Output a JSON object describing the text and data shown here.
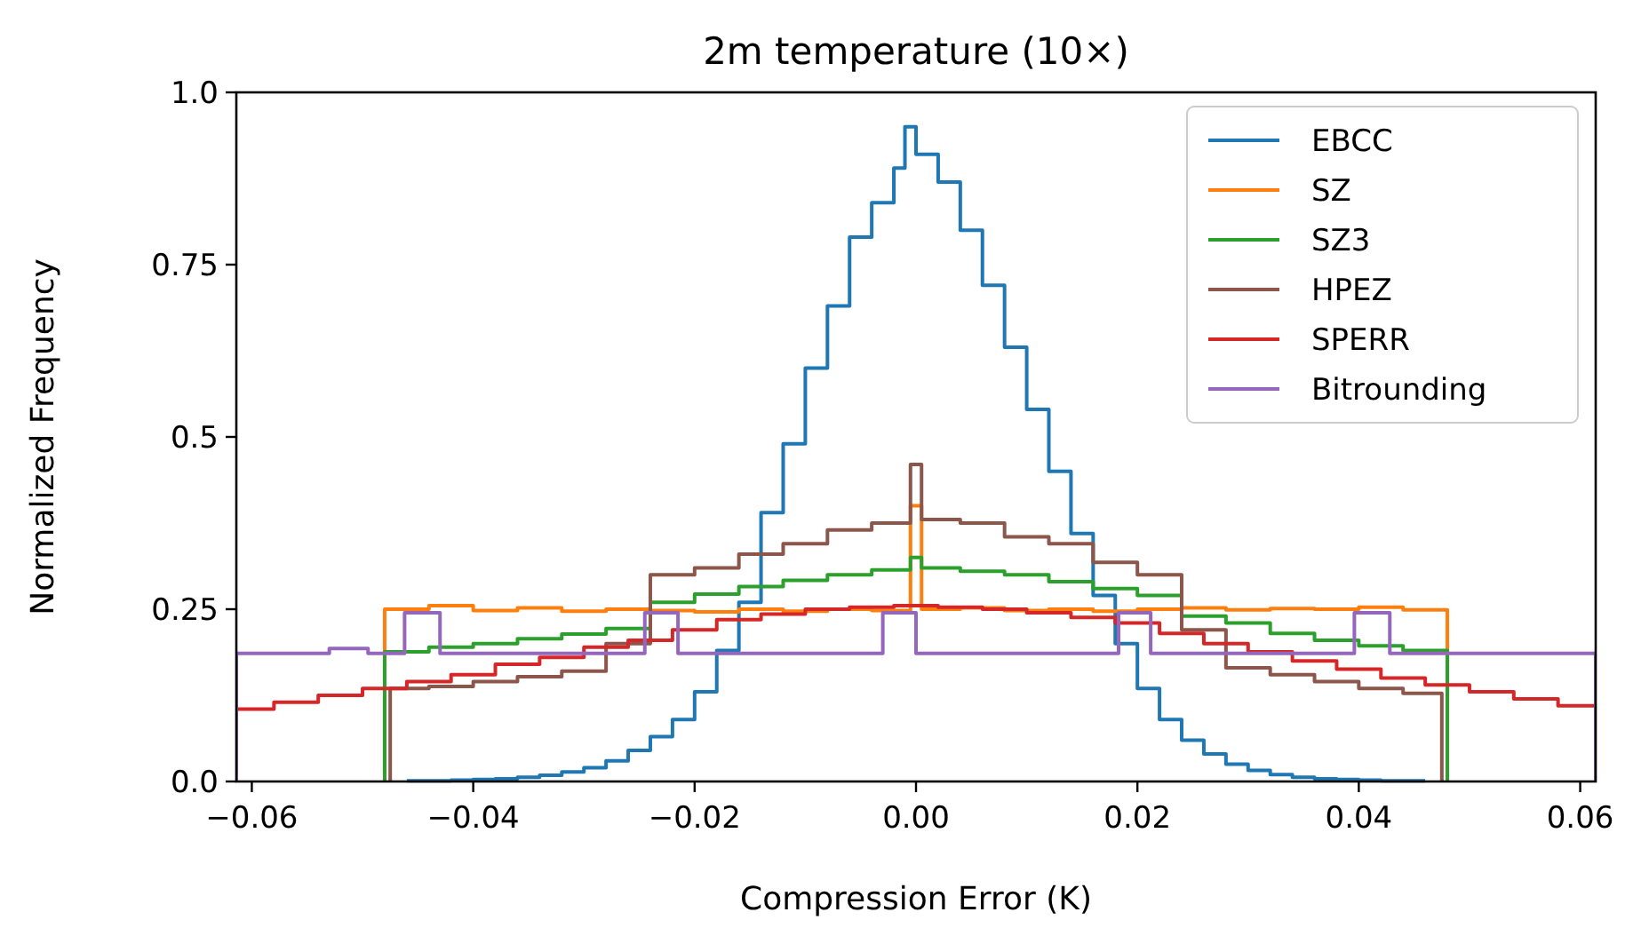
{
  "chart_data": {
    "type": "step",
    "title": "2m temperature (10×)",
    "xlabel": "Compression Error (K)",
    "ylabel": "Normalized Frequency",
    "xlim": [
      -0.0614,
      0.0614
    ],
    "ylim": [
      0,
      1
    ],
    "xticks": [
      {
        "value": -0.06,
        "label": "−0.06"
      },
      {
        "value": -0.04,
        "label": "−0.04"
      },
      {
        "value": -0.02,
        "label": "−0.02"
      },
      {
        "value": 0,
        "label": "0.00"
      },
      {
        "value": 0.02,
        "label": "0.02"
      },
      {
        "value": 0.04,
        "label": "0.04"
      },
      {
        "value": 0.06,
        "label": "0.06"
      }
    ],
    "yticks": [
      {
        "value": 0,
        "label": "0.0"
      },
      0.25,
      0.5,
      0.75,
      {
        "value": 1,
        "label": "1.0"
      }
    ],
    "legend": "top right",
    "grid": false,
    "series": [
      {
        "name": "EBCC",
        "color": "#1f77b4",
        "x": [
          -0.046,
          -0.044,
          -0.042,
          -0.04,
          -0.038,
          -0.036,
          -0.034,
          -0.032,
          -0.03,
          -0.028,
          -0.026,
          -0.024,
          -0.022,
          -0.02,
          -0.018,
          -0.016,
          -0.014,
          -0.012,
          -0.01,
          -0.008,
          -0.006,
          -0.004,
          -0.002,
          -0.001,
          0,
          0.002,
          0.004,
          0.006,
          0.008,
          0.01,
          0.012,
          0.014,
          0.016,
          0.018,
          0.02,
          0.022,
          0.024,
          0.026,
          0.028,
          0.03,
          0.032,
          0.034,
          0.036,
          0.038,
          0.04,
          0.042,
          0.044,
          0.046
        ],
        "values": [
          0.001,
          0.001,
          0.002,
          0.003,
          0.004,
          0.006,
          0.009,
          0.014,
          0.02,
          0.03,
          0.045,
          0.065,
          0.09,
          0.13,
          0.19,
          0.26,
          0.39,
          0.49,
          0.6,
          0.69,
          0.79,
          0.84,
          0.89,
          0.95,
          0.91,
          0.87,
          0.8,
          0.72,
          0.63,
          0.54,
          0.45,
          0.36,
          0.27,
          0.2,
          0.135,
          0.09,
          0.06,
          0.04,
          0.025,
          0.016,
          0.01,
          0.006,
          0.004,
          0.003,
          0.002,
          0.001,
          0.001,
          0.001
        ]
      },
      {
        "name": "SZ",
        "color": "#ff7f0e",
        "x": [
          -0.048,
          -0.048,
          -0.044,
          -0.04,
          -0.036,
          -0.032,
          -0.028,
          -0.024,
          -0.02,
          -0.016,
          -0.012,
          -0.008,
          -0.004,
          -0.0005,
          0.0005,
          0.004,
          0.008,
          0.012,
          0.016,
          0.02,
          0.024,
          0.028,
          0.032,
          0.036,
          0.04,
          0.044,
          0.048
        ],
        "values": [
          0,
          0.25,
          0.255,
          0.248,
          0.252,
          0.247,
          0.25,
          0.248,
          0.246,
          0.25,
          0.247,
          0.25,
          0.248,
          0.4,
          0.25,
          0.252,
          0.248,
          0.25,
          0.247,
          0.25,
          0.252,
          0.249,
          0.251,
          0.25,
          0.253,
          0.249,
          0
        ]
      },
      {
        "name": "SZ3",
        "color": "#2ca02c",
        "x": [
          -0.048,
          -0.048,
          -0.044,
          -0.04,
          -0.036,
          -0.032,
          -0.028,
          -0.024,
          -0.02,
          -0.016,
          -0.012,
          -0.008,
          -0.004,
          -0.0005,
          0.0005,
          0.004,
          0.008,
          0.012,
          0.016,
          0.02,
          0.024,
          0.028,
          0.032,
          0.036,
          0.04,
          0.044,
          0.048
        ],
        "values": [
          0,
          0.188,
          0.195,
          0.2,
          0.207,
          0.214,
          0.222,
          0.26,
          0.272,
          0.283,
          0.292,
          0.3,
          0.307,
          0.325,
          0.31,
          0.305,
          0.3,
          0.29,
          0.28,
          0.27,
          0.24,
          0.23,
          0.215,
          0.205,
          0.197,
          0.19,
          0
        ]
      },
      {
        "name": "HPEZ",
        "color": "#8c564b",
        "x": [
          -0.0475,
          -0.0475,
          -0.044,
          -0.04,
          -0.036,
          -0.032,
          -0.028,
          -0.024,
          -0.02,
          -0.016,
          -0.012,
          -0.008,
          -0.004,
          -0.0005,
          0.0005,
          0.004,
          0.008,
          0.012,
          0.016,
          0.02,
          0.024,
          0.028,
          0.032,
          0.036,
          0.04,
          0.044,
          0.0475
        ],
        "values": [
          0,
          0.135,
          0.138,
          0.145,
          0.152,
          0.16,
          0.2,
          0.3,
          0.31,
          0.33,
          0.345,
          0.365,
          0.375,
          0.46,
          0.38,
          0.375,
          0.355,
          0.345,
          0.318,
          0.3,
          0.22,
          0.165,
          0.155,
          0.145,
          0.135,
          0.128,
          0
        ]
      },
      {
        "name": "SPERR",
        "color": "#d62728",
        "x": [
          -0.0614,
          -0.0614,
          -0.058,
          -0.054,
          -0.05,
          -0.046,
          -0.042,
          -0.038,
          -0.034,
          -0.03,
          -0.026,
          -0.022,
          -0.018,
          -0.014,
          -0.01,
          -0.006,
          -0.002,
          0.002,
          0.006,
          0.01,
          0.014,
          0.018,
          0.022,
          0.026,
          0.03,
          0.034,
          0.038,
          0.042,
          0.046,
          0.05,
          0.054,
          0.058,
          0.0614
        ],
        "values": [
          0,
          0.105,
          0.115,
          0.125,
          0.135,
          0.145,
          0.155,
          0.17,
          0.18,
          0.195,
          0.205,
          0.22,
          0.235,
          0.243,
          0.25,
          0.253,
          0.255,
          0.253,
          0.25,
          0.245,
          0.238,
          0.23,
          0.215,
          0.2,
          0.188,
          0.175,
          0.163,
          0.15,
          0.14,
          0.13,
          0.12,
          0.11,
          0
        ]
      },
      {
        "name": "Bitrounding",
        "color": "#9467bd",
        "x": [
          -0.0614,
          -0.0614,
          -0.053,
          -0.0495,
          -0.0462,
          -0.043,
          -0.0245,
          -0.0215,
          -0.003,
          0,
          0.0183,
          0.0212,
          0.0396,
          0.0428,
          0.0614
        ],
        "values": [
          0,
          0.186,
          0.193,
          0.186,
          0.245,
          0.186,
          0.245,
          0.186,
          0.245,
          0.186,
          0.245,
          0.186,
          0.245,
          0.186,
          0
        ]
      }
    ]
  }
}
